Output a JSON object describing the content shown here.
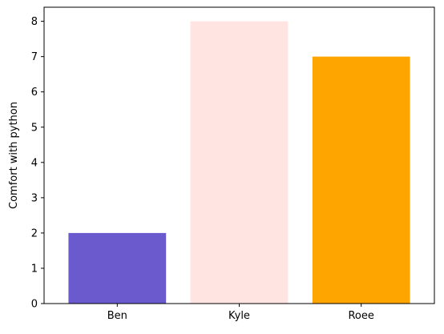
{
  "chart_data": {
    "type": "bar",
    "categories": [
      "Ben",
      "Kyle",
      "Roee"
    ],
    "values": [
      2,
      8,
      7
    ],
    "colors": [
      "#6a5acd",
      "#ffe4e1",
      "#ffa500"
    ],
    "title": "",
    "xlabel": "",
    "ylabel": "Comfort with python",
    "ylim": [
      0,
      8.4
    ],
    "yticks": [
      0,
      1,
      2,
      3,
      4,
      5,
      6,
      7,
      8
    ],
    "grid": false,
    "legend": false
  }
}
